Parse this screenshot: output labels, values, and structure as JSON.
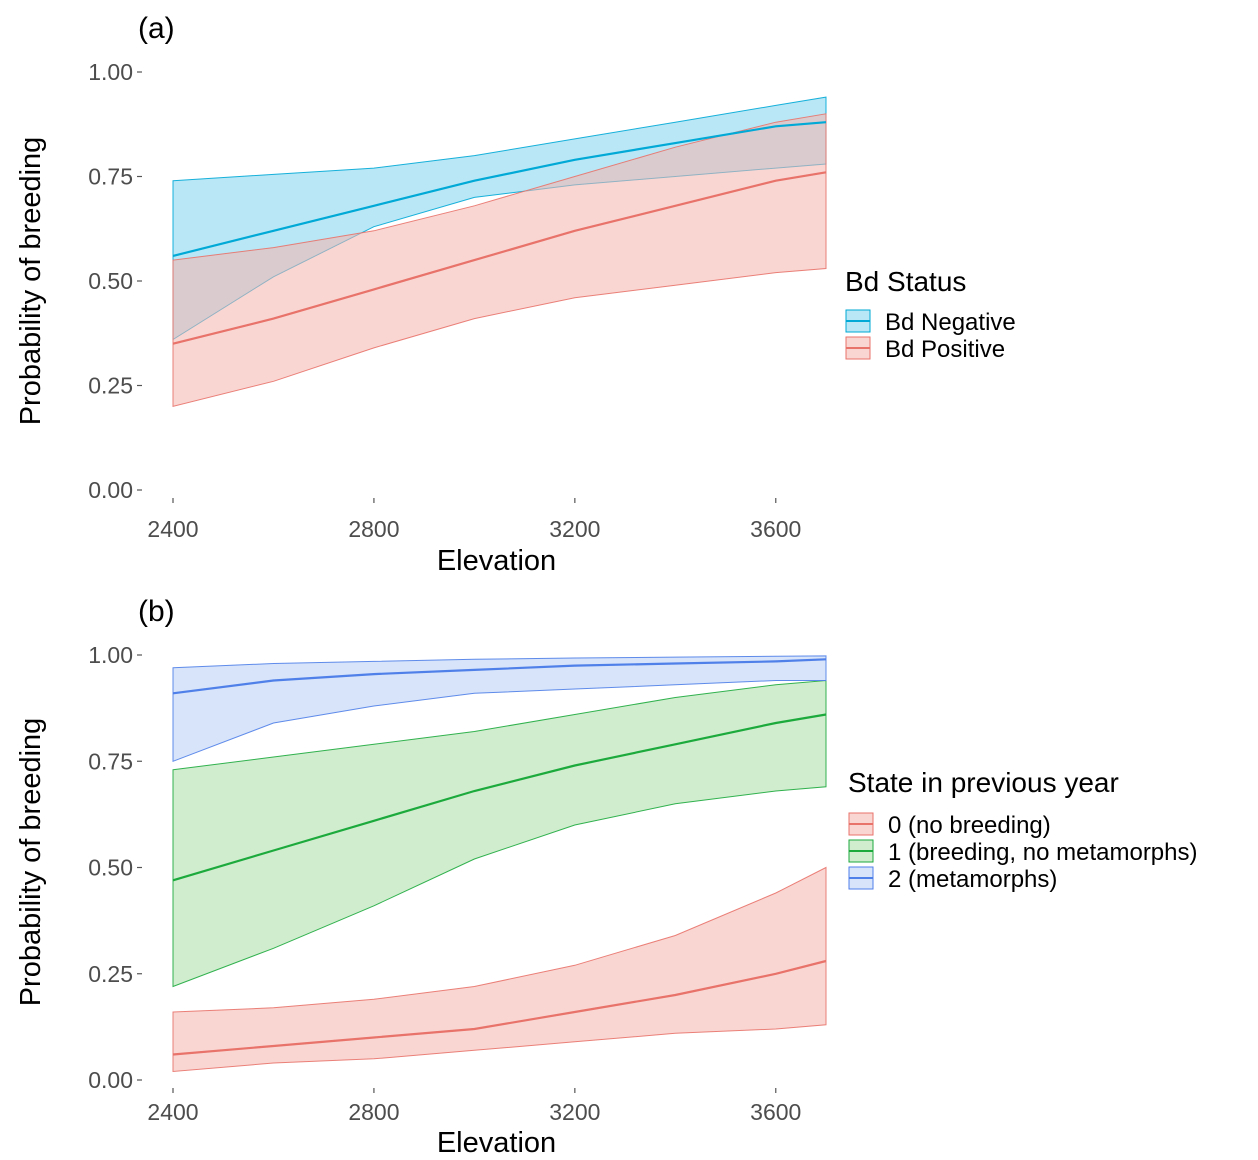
{
  "chart_data": [
    {
      "type": "line",
      "panel_label": "(a)",
      "xlabel": "Elevation",
      "ylabel": "Probability of breeding",
      "xlim": [
        2400,
        3700
      ],
      "ylim": [
        0,
        1
      ],
      "xticks": [
        2400,
        2800,
        3200,
        3600
      ],
      "yticks": [
        0,
        0.25,
        0.5,
        0.75,
        1
      ],
      "ytick_labels": [
        "0.00",
        "0.25",
        "0.50",
        "0.75",
        "1.00"
      ],
      "grid": false,
      "legend_title": "Bd Status",
      "legend_position": "right",
      "series": [
        {
          "name": "Bd Negative",
          "color": "#00A9D6",
          "fill": "#7FD4EE",
          "x": [
            2400,
            2600,
            2800,
            3000,
            3200,
            3400,
            3600,
            3700
          ],
          "y": [
            0.56,
            0.62,
            0.68,
            0.74,
            0.79,
            0.83,
            0.87,
            0.88
          ],
          "lower": [
            0.36,
            0.51,
            0.63,
            0.7,
            0.73,
            0.75,
            0.77,
            0.78
          ],
          "upper": [
            0.74,
            0.755,
            0.77,
            0.8,
            0.84,
            0.88,
            0.92,
            0.94
          ]
        },
        {
          "name": "Bd Positive",
          "color": "#E8736A",
          "fill": "#F6B4AE",
          "x": [
            2400,
            2600,
            2800,
            3000,
            3200,
            3400,
            3600,
            3700
          ],
          "y": [
            0.35,
            0.41,
            0.48,
            0.55,
            0.62,
            0.68,
            0.74,
            0.76
          ],
          "lower": [
            0.2,
            0.26,
            0.34,
            0.41,
            0.46,
            0.49,
            0.52,
            0.53
          ],
          "upper": [
            0.55,
            0.58,
            0.62,
            0.68,
            0.75,
            0.82,
            0.88,
            0.9
          ]
        }
      ]
    },
    {
      "type": "line",
      "panel_label": "(b)",
      "xlabel": "Elevation",
      "ylabel": "Probability of breeding",
      "xlim": [
        2400,
        3700
      ],
      "ylim": [
        0,
        1
      ],
      "xticks": [
        2400,
        2800,
        3200,
        3600
      ],
      "yticks": [
        0,
        0.25,
        0.5,
        0.75,
        1
      ],
      "ytick_labels": [
        "0.00",
        "0.25",
        "0.50",
        "0.75",
        "1.00"
      ],
      "grid": false,
      "legend_title": "State in previous year",
      "legend_position": "right",
      "series": [
        {
          "name": "0 (no breeding)",
          "color": "#E8736A",
          "fill": "#F6B4AE",
          "x": [
            2400,
            2600,
            2800,
            3000,
            3200,
            3400,
            3600,
            3700
          ],
          "y": [
            0.06,
            0.08,
            0.1,
            0.12,
            0.16,
            0.2,
            0.25,
            0.28
          ],
          "lower": [
            0.02,
            0.04,
            0.05,
            0.07,
            0.09,
            0.11,
            0.12,
            0.13
          ],
          "upper": [
            0.16,
            0.17,
            0.19,
            0.22,
            0.27,
            0.34,
            0.44,
            0.5
          ]
        },
        {
          "name": "1 (breeding, no metamorphs)",
          "color": "#1DAA3D",
          "fill": "#A9DFA5",
          "x": [
            2400,
            2600,
            2800,
            3000,
            3200,
            3400,
            3600,
            3700
          ],
          "y": [
            0.47,
            0.54,
            0.61,
            0.68,
            0.74,
            0.79,
            0.84,
            0.86
          ],
          "lower": [
            0.22,
            0.31,
            0.41,
            0.52,
            0.6,
            0.65,
            0.68,
            0.69
          ],
          "upper": [
            0.73,
            0.76,
            0.79,
            0.82,
            0.86,
            0.9,
            0.93,
            0.94
          ]
        },
        {
          "name": "2 (metamorphs)",
          "color": "#4F7FE8",
          "fill": "#B6CDF5",
          "x": [
            2400,
            2600,
            2800,
            3000,
            3200,
            3400,
            3600,
            3700
          ],
          "y": [
            0.91,
            0.94,
            0.955,
            0.965,
            0.975,
            0.98,
            0.985,
            0.99
          ],
          "lower": [
            0.75,
            0.84,
            0.88,
            0.91,
            0.92,
            0.93,
            0.94,
            0.94
          ],
          "upper": [
            0.97,
            0.98,
            0.985,
            0.99,
            0.993,
            0.995,
            0.997,
            0.998
          ]
        }
      ]
    }
  ]
}
